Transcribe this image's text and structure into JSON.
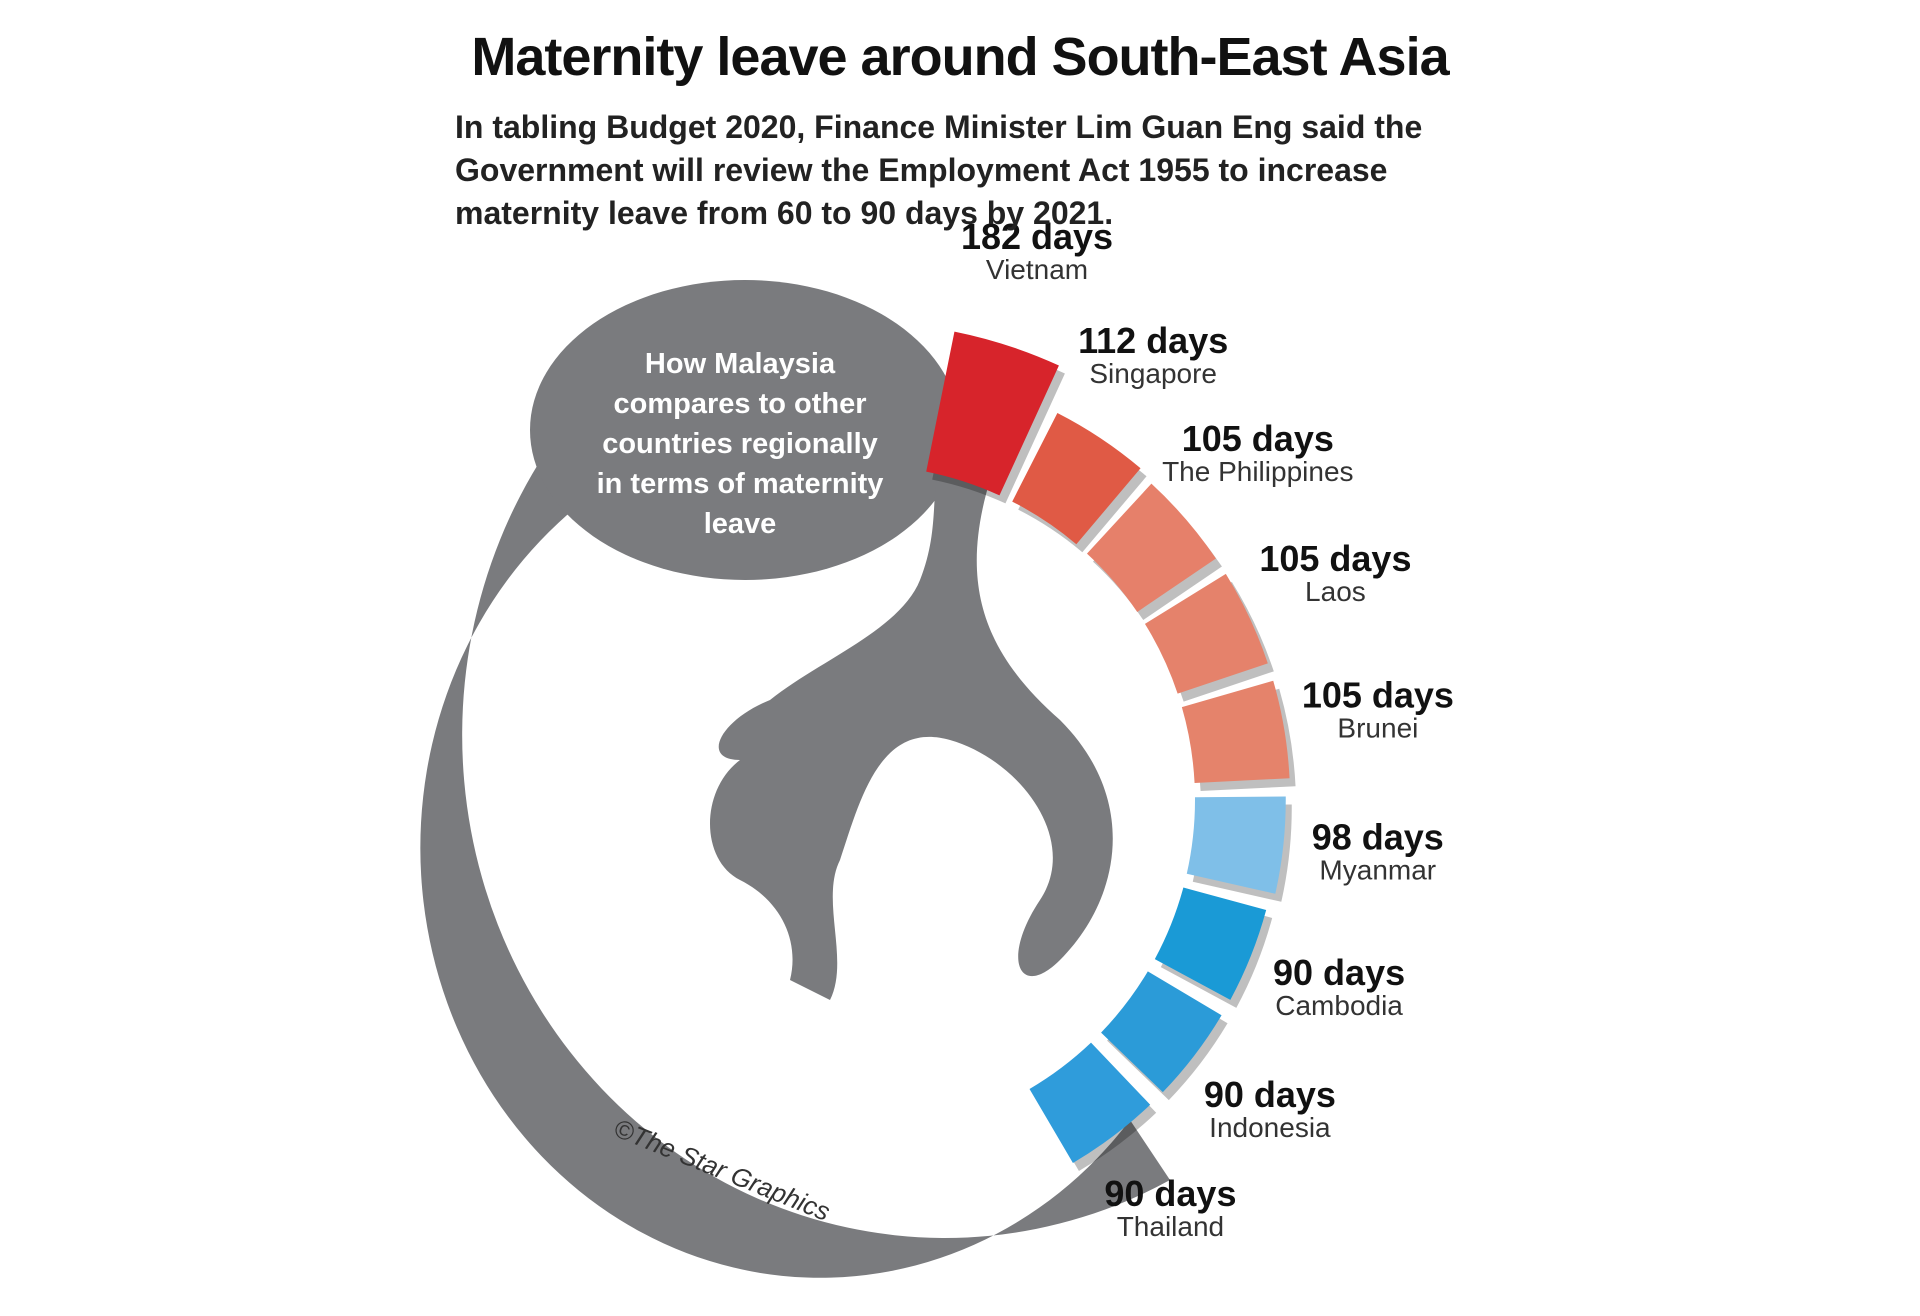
{
  "chart_data": {
    "type": "radial-bar",
    "title": "Maternity leave around South-East Asia",
    "subtitle": "In tabling Budget 2020, Finance Minister Lim Guan Eng said the Government will review the Employment Act 1955 to increase maternity leave from 60 to 90 days by 2021.",
    "annotation": "How Malaysia compares to other countries regionally in terms of maternity leave",
    "credit": "©The Star Graphics",
    "categories": [
      "Vietnam",
      "Singapore",
      "The Philippines",
      "Laos",
      "Brunei",
      "Myanmar",
      "Cambodia",
      "Indonesia",
      "Thailand"
    ],
    "values": [
      182,
      112,
      105,
      105,
      105,
      98,
      90,
      90,
      90
    ],
    "value_labels": [
      "182 days",
      "112 days",
      "105 days",
      "105 days",
      "105 days",
      "98 days",
      "90 days",
      "90 days",
      "90 days"
    ],
    "colors": [
      "#d7242b",
      "#e05a45",
      "#e6806a",
      "#e5826b",
      "#e5836b",
      "#7fbfe8",
      "#1a9ad6",
      "#2b9bd8",
      "#2f9cdb"
    ]
  }
}
